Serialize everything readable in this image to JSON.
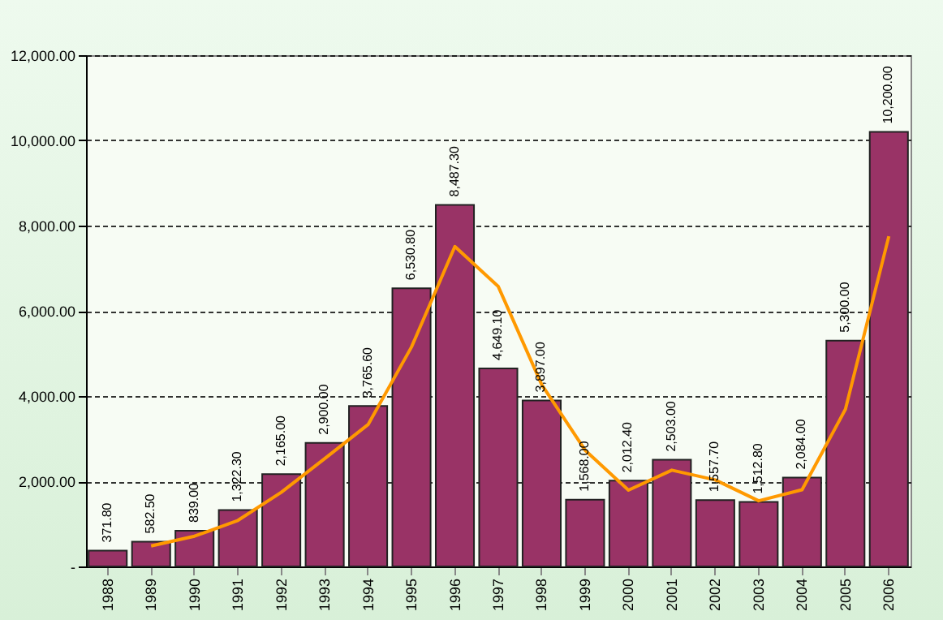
{
  "chart_data": {
    "type": "bar",
    "categories": [
      "1988",
      "1989",
      "1990",
      "1991",
      "1992",
      "1993",
      "1994",
      "1995",
      "1996",
      "1997",
      "1998",
      "1999",
      "2000",
      "2001",
      "2002",
      "2003",
      "2004",
      "2005",
      "2006"
    ],
    "series": [
      {
        "color": "#993366",
        "values": [
          371.8,
          582.5,
          839,
          1322.3,
          2165,
          2900,
          3765.6,
          6530.8,
          8487.3,
          4649.1,
          3897,
          1568,
          2012.4,
          2503,
          1557.7,
          1512.8,
          2084,
          5300,
          10200
        ],
        "value_labels": [
          "371.80",
          "582.50",
          "839.00",
          "1,322.30",
          "2,165.00",
          "2,900.00",
          "3,765.60",
          "6,530.80",
          "8,487.30",
          "4,649.10",
          "3,897.00",
          "1,568.00",
          "2,012.40",
          "2,503.00",
          "1,557.70",
          "1,512.80",
          "2,084.00",
          "5,300.00",
          "10,200.00"
        ]
      },
      {
        "type": "line",
        "color": "#ff9900",
        "values": [
          null,
          480,
          710,
          1080,
          1740,
          2530,
          3330,
          5150,
          7510,
          6570,
          4270,
          2730,
          1790,
          2260,
          2030,
          1540,
          1800,
          3690,
          7750
        ]
      }
    ],
    "ylim": [
      0,
      12000
    ],
    "yticks": [
      {
        "value": 0,
        "label": "-"
      },
      {
        "value": 2000,
        "label": "2,000.00"
      },
      {
        "value": 4000,
        "label": "4,000.00"
      },
      {
        "value": 6000,
        "label": "6,000.00"
      },
      {
        "value": 8000,
        "label": "8,000.00"
      },
      {
        "value": 10000,
        "label": "10,000.00"
      },
      {
        "value": 12000,
        "label": "12,000.00"
      }
    ],
    "grid": "y"
  }
}
